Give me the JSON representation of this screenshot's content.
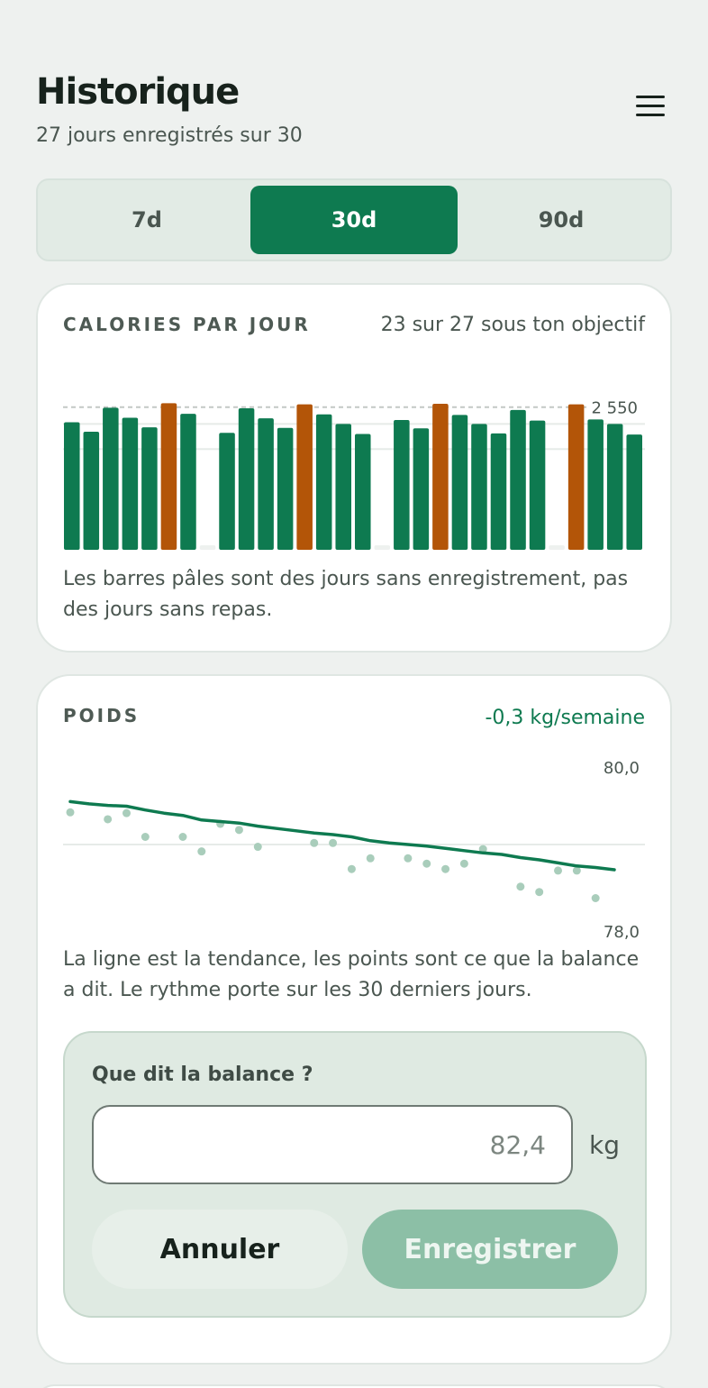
{
  "header": {
    "title": "Historique",
    "subtitle": "27 jours enregistrés sur 30",
    "menu_icon": "hamburger-menu-icon"
  },
  "tabs": [
    {
      "label": "7d",
      "active": false
    },
    {
      "label": "30d",
      "active": true
    },
    {
      "label": "90d",
      "active": false
    }
  ],
  "calories_card": {
    "label": "CALORIES PAR JOUR",
    "meta": "23 sur 27 sous ton objectif",
    "note": "Les barres pâles sont des jours sans enregistrement, pas des jours sans repas."
  },
  "weight_card": {
    "label": "POIDS",
    "meta": "-0,3 kg/semaine",
    "note": "La ligne est la tendance, les points sont ce que la balance a dit. Le rythme porte sur les 30 derniers jours.",
    "entry": {
      "question": "Que dit la balance ?",
      "input_value": "",
      "input_placeholder": "82,4",
      "unit": "kg",
      "cancel_label": "Annuler",
      "save_label": "Enregistrer"
    }
  },
  "colors": {
    "accent": "#0e7a50",
    "over_target": "#b35508",
    "missing": "#eef1ef",
    "dots": "#a9cdbb",
    "save_disabled": "#8cbfa6"
  },
  "chart_data": [
    {
      "type": "bar",
      "title": "CALORIES PAR JOUR",
      "target": 2550,
      "target_label": "2 550",
      "ylim": [
        0,
        2900
      ],
      "grid": true,
      "days": [
        1,
        2,
        3,
        4,
        5,
        6,
        7,
        8,
        9,
        10,
        11,
        12,
        13,
        14,
        15,
        16,
        17,
        18,
        19,
        20,
        21,
        22,
        23,
        24,
        25,
        26,
        27,
        28,
        29,
        30
      ],
      "values": [
        2280,
        2110,
        2540,
        2360,
        2190,
        2620,
        2430,
        null,
        2090,
        2530,
        2350,
        2180,
        2600,
        2420,
        2250,
        2070,
        null,
        2320,
        2170,
        2610,
        2410,
        2250,
        2080,
        2500,
        2310,
        null,
        2600,
        2330,
        2250,
        2060
      ],
      "status": [
        "under",
        "under",
        "under",
        "under",
        "under",
        "over",
        "under",
        "missing",
        "under",
        "under",
        "under",
        "under",
        "over",
        "under",
        "under",
        "under",
        "missing",
        "under",
        "under",
        "over",
        "under",
        "under",
        "under",
        "under",
        "under",
        "missing",
        "over",
        "under",
        "under",
        "under"
      ]
    },
    {
      "type": "line",
      "title": "POIDS",
      "ylim": [
        78.0,
        80.0
      ],
      "ytick_labels": [
        "80,0",
        "78,0"
      ],
      "grid": true,
      "trend": [
        79.56,
        79.53,
        79.51,
        79.5,
        79.45,
        79.41,
        79.38,
        79.32,
        79.3,
        79.28,
        79.24,
        79.21,
        79.18,
        79.15,
        79.13,
        79.1,
        79.05,
        79.02,
        79.0,
        78.98,
        78.95,
        78.92,
        78.89,
        78.87,
        78.83,
        78.8,
        78.76,
        78.72,
        78.7,
        78.67
      ],
      "scale_readings": [
        79.42,
        null,
        79.33,
        79.41,
        79.1,
        null,
        79.1,
        78.91,
        79.27,
        79.19,
        78.97,
        null,
        null,
        79.02,
        79.02,
        78.68,
        78.82,
        null,
        78.82,
        78.75,
        78.68,
        78.75,
        78.94,
        null,
        78.45,
        78.38,
        78.66,
        78.66,
        78.3,
        null
      ]
    }
  ]
}
